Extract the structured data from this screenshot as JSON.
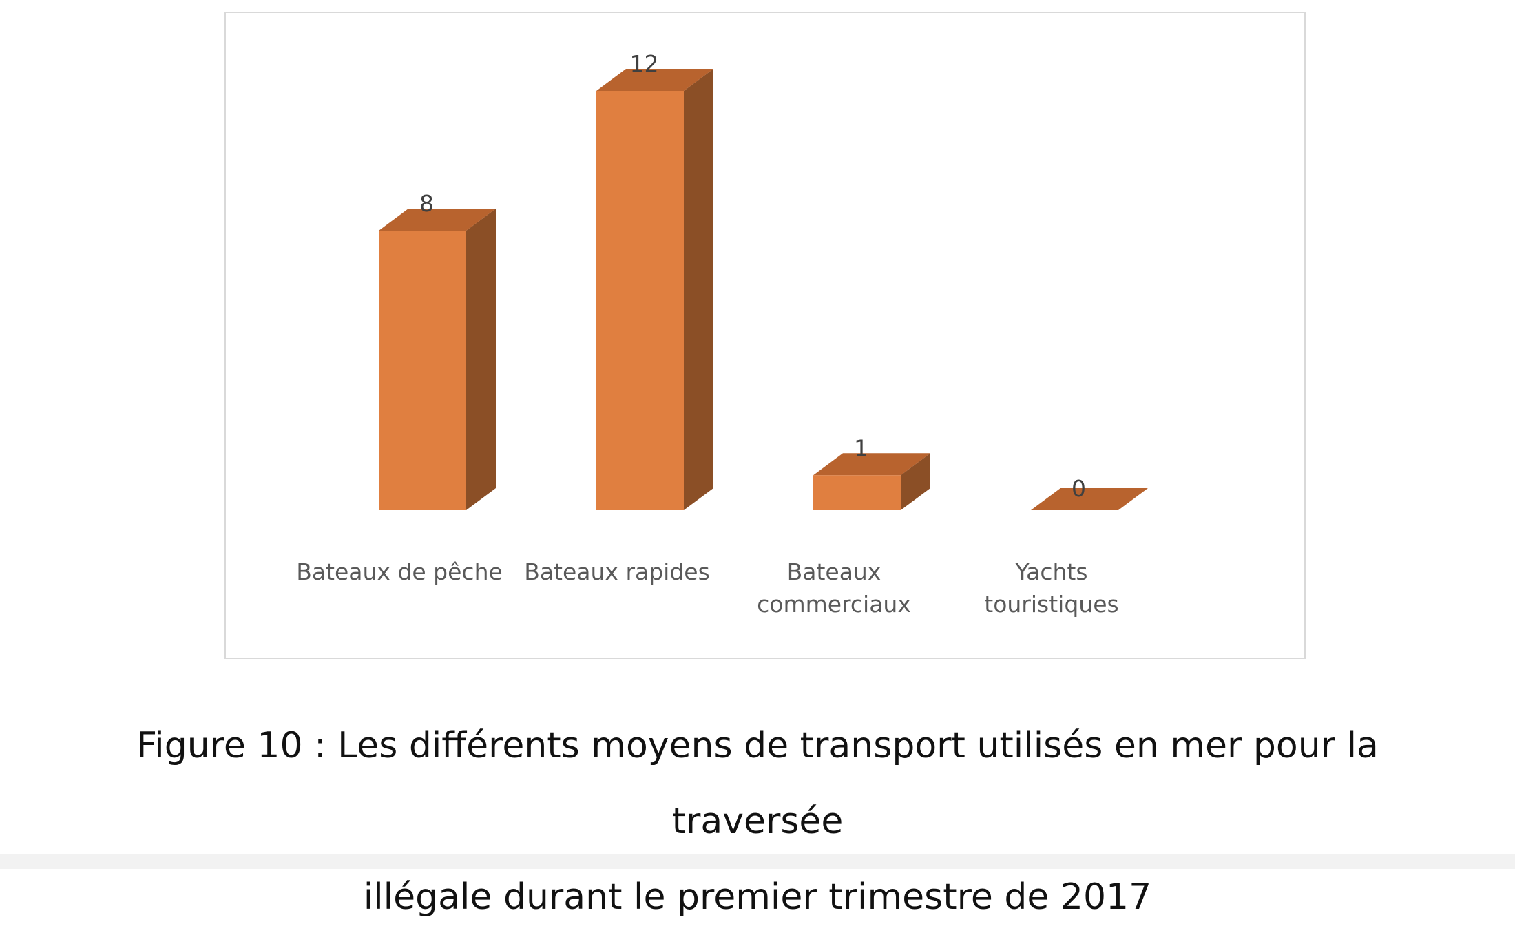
{
  "chart_data": {
    "type": "bar",
    "style": "3d-column",
    "categories": [
      [
        "Bateaux de pêche"
      ],
      [
        "Bateaux rapides"
      ],
      [
        "Bateaux",
        "commerciaux"
      ],
      [
        "Yachts",
        "touristiques"
      ]
    ],
    "values": [
      8,
      12,
      1,
      0
    ],
    "data_labels": [
      "8",
      "12",
      "1",
      "0"
    ],
    "ylim": [
      0,
      12
    ],
    "grid": false,
    "legend": "none",
    "colors": {
      "front": "#E07F40",
      "side": "#8B4F26",
      "top": "#B8632E"
    }
  },
  "caption": {
    "line1": "Figure 10 : Les différents moyens de transport utilisés en mer pour la traversée",
    "line2": "illégale durant le premier trimestre de 2017"
  }
}
